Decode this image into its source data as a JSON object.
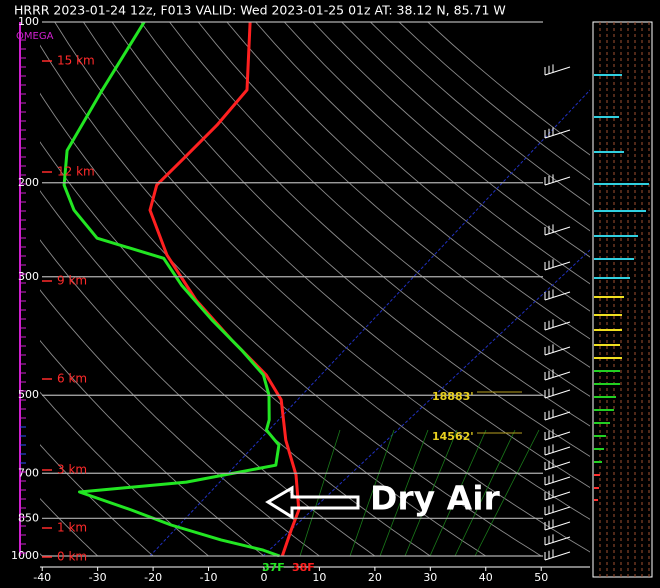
{
  "chart_data": {
    "type": "skew-t",
    "title": "HRRR 2023-01-24 12z, F013  VALID: Wed 2023-01-25 01z  AT: 38.12 N, 85.71 W",
    "omega_label": "OMEGA",
    "xlim": [
      -40.4,
      58.8
    ],
    "xticks": [
      -40,
      -30,
      -20,
      -10,
      0,
      10,
      20,
      30,
      40,
      50
    ],
    "ylim": [
      1000,
      100
    ],
    "yticks": [
      100,
      200,
      300,
      500,
      700,
      850,
      1000
    ],
    "log_scale": true,
    "height_labels": [
      "15 km",
      "12 km",
      "9 km",
      "6 km",
      "3 km",
      "1 km",
      "0 km"
    ],
    "level_labels": [
      "18883'",
      "14562'"
    ],
    "surface_labels": [
      "37F",
      "38F"
    ],
    "annotation": "Dry Air",
    "series": [
      {
        "color": "#ff2020",
        "pressure": [
          100,
          134,
          156,
          180,
          202,
          225,
          273,
          332,
          394,
          458,
          510,
          607,
          705,
          820,
          894,
          1000
        ],
        "values": [
          -60.3,
          -53.5,
          -55.1,
          -57.5,
          -59.5,
          -58.0,
          -50.1,
          -39.9,
          -29.2,
          -19.2,
          -13.8,
          -8.6,
          -3.0,
          1.3,
          2.1,
          3.3
        ]
      },
      {
        "color": "#22e622",
        "pressure": [
          100,
          134,
          174,
          202,
          225,
          254,
          277,
          311,
          361,
          411,
          458,
          500,
          556,
          581,
          620,
          676,
          727,
          759,
          820,
          875,
          933,
          975,
          1000
        ],
        "values": [
          -79.4,
          -79.6,
          -79.4,
          -76.2,
          -71.7,
          -64.5,
          -50.3,
          -44.2,
          -35.0,
          -26.4,
          -19.7,
          -16.5,
          -13.8,
          -13.2,
          -9.3,
          -7.7,
          -22.0,
          -40.2,
          -28.9,
          -20.1,
          -9.5,
          -0.8,
          2.8
        ]
      }
    ]
  }
}
